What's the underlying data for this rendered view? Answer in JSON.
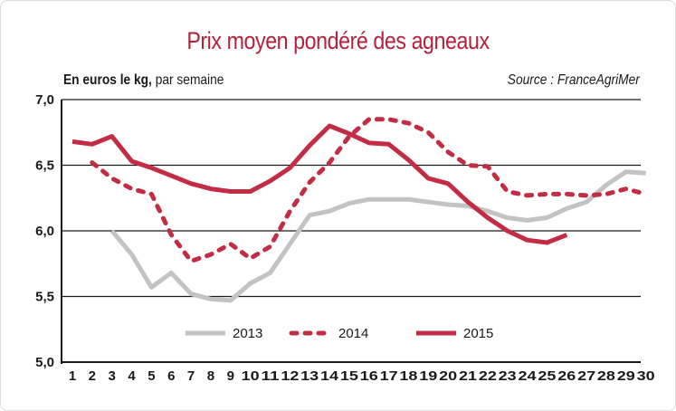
{
  "chart_data": {
    "type": "line",
    "title": "Prix moyen pondéré des agneaux",
    "subtitle_bold": "En euros le kg,",
    "subtitle_rest": " par semaine",
    "source": "Source : FranceAgriMer",
    "xlabel": "",
    "ylabel": "",
    "ylim": [
      5.0,
      7.0
    ],
    "yticks": [
      "5,0",
      "5,5",
      "6,0",
      "6,5",
      "7,0"
    ],
    "ytick_values": [
      5.0,
      5.5,
      6.0,
      6.5,
      7.0
    ],
    "x": [
      1,
      2,
      3,
      4,
      5,
      6,
      7,
      8,
      9,
      10,
      11,
      12,
      13,
      14,
      15,
      16,
      17,
      18,
      19,
      20,
      21,
      22,
      23,
      24,
      25,
      26,
      27,
      28,
      29,
      30
    ],
    "xtick_labels": [
      "1",
      "2",
      "3",
      "4",
      "5",
      "6",
      "7",
      "8",
      "9",
      "10",
      "11",
      "12",
      "13",
      "14",
      "15",
      "16",
      "17",
      "18",
      "19",
      "20",
      "21",
      "22",
      "23",
      "24",
      "25",
      "26",
      "27",
      "28",
      "29",
      "30"
    ],
    "grid": "horizontal",
    "legend_position": "bottom-center",
    "series": [
      {
        "name": "2013",
        "color": "#c3c3c3",
        "style": "solid",
        "x": [
          3,
          4,
          5,
          6,
          7,
          8,
          9,
          10,
          11,
          12,
          13,
          14,
          15,
          16,
          17,
          18,
          19,
          20,
          21,
          22,
          23,
          24,
          25,
          26,
          27,
          28,
          29,
          30
        ],
        "values": [
          6.0,
          5.82,
          5.57,
          5.68,
          5.52,
          5.48,
          5.47,
          5.6,
          5.68,
          5.9,
          6.12,
          6.15,
          6.21,
          6.24,
          6.24,
          6.24,
          6.22,
          6.2,
          6.19,
          6.15,
          6.1,
          6.08,
          6.1,
          6.17,
          6.22,
          6.35,
          6.45,
          6.44
        ]
      },
      {
        "name": "2014",
        "color": "#c22c45",
        "style": "dashed",
        "x": [
          2,
          3,
          4,
          5,
          6,
          7,
          8,
          9,
          10,
          11,
          12,
          13,
          14,
          15,
          16,
          17,
          18,
          19,
          20,
          21,
          22,
          23,
          24,
          25,
          26,
          27,
          28,
          29,
          30
        ],
        "values": [
          6.52,
          6.4,
          6.32,
          6.28,
          5.97,
          5.77,
          5.82,
          5.9,
          5.79,
          5.88,
          6.15,
          6.37,
          6.52,
          6.72,
          6.85,
          6.85,
          6.82,
          6.75,
          6.6,
          6.5,
          6.49,
          6.3,
          6.27,
          6.28,
          6.28,
          6.27,
          6.28,
          6.32,
          6.28
        ]
      },
      {
        "name": "2015",
        "color": "#c22c45",
        "style": "solid",
        "x": [
          1,
          2,
          3,
          4,
          5,
          6,
          7,
          8,
          9,
          10,
          11,
          12,
          13,
          14,
          15,
          16,
          17,
          18,
          19,
          20,
          21,
          22,
          23,
          24,
          25,
          26
        ],
        "values": [
          6.68,
          6.66,
          6.72,
          6.53,
          6.48,
          6.42,
          6.36,
          6.32,
          6.3,
          6.3,
          6.38,
          6.48,
          6.65,
          6.8,
          6.74,
          6.67,
          6.66,
          6.54,
          6.4,
          6.36,
          6.22,
          6.1,
          6.0,
          5.93,
          5.91,
          5.97
        ]
      }
    ]
  }
}
